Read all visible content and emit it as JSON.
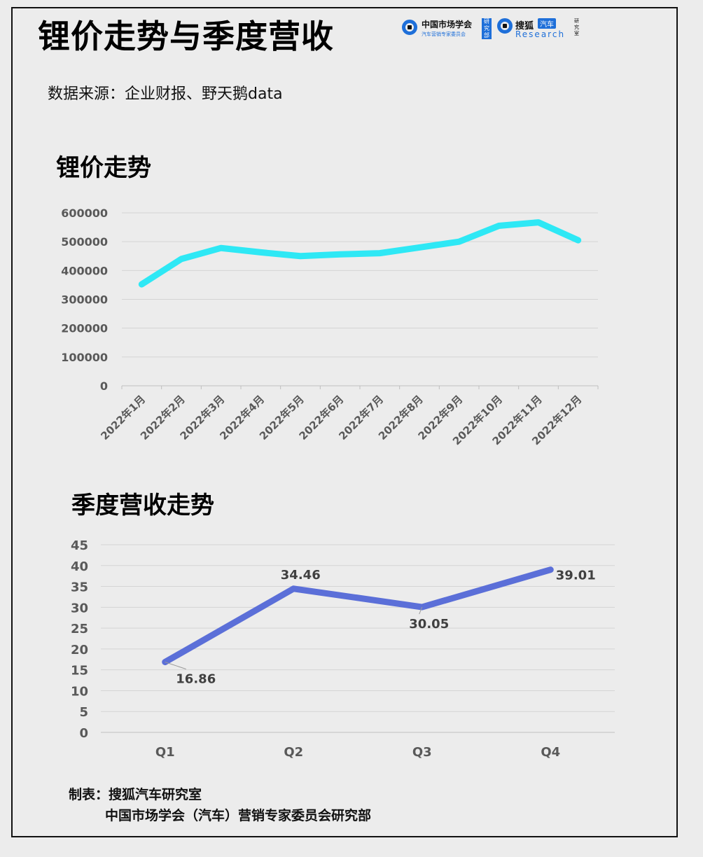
{
  "title": "锂价走势与季度营收",
  "source": "数据来源：企业财报、野天鹅data",
  "logos": {
    "logo1_line1": "中国市场学会",
    "logo1_line2": "汽车营销专家委员会",
    "logo1_box": "研究部",
    "logo2_name": "搜狐",
    "logo2_tag": "汽车",
    "logo2_research": "Research",
    "logo2_side": "研究室"
  },
  "section1_title": "锂价走势",
  "section2_title": "季度营收走势",
  "footer": {
    "line1": "制表：搜狐汽车研究室",
    "line2": "中国市场学会（汽车）营销专家委员会研究部"
  },
  "colors": {
    "lithium_line": "#2ee8f5",
    "revenue_line": "#5b6fd8",
    "grid": "#d4d4d4",
    "axis_text": "#595959"
  },
  "chart_data": [
    {
      "type": "line",
      "title": "锂价走势",
      "categories": [
        "2022年1月",
        "2022年2月",
        "2022年3月",
        "2022年4月",
        "2022年5月",
        "2022年6月",
        "2022年7月",
        "2022年8月",
        "2022年9月",
        "2022年10月",
        "2022年11月",
        "2022年12月"
      ],
      "series": [
        {
          "values": [
            352000,
            440000,
            478000,
            463000,
            450000,
            456000,
            460000,
            480000,
            500000,
            555000,
            567000,
            505000
          ]
        }
      ],
      "yticks": [
        "0",
        "100000",
        "200000",
        "300000",
        "400000",
        "500000",
        "600000"
      ],
      "ylim": [
        0,
        600000
      ],
      "grid": true
    },
    {
      "type": "line",
      "title": "季度营收走势",
      "categories": [
        "Q1",
        "Q2",
        "Q3",
        "Q4"
      ],
      "series": [
        {
          "values": [
            16.86,
            34.46,
            30.05,
            39.01
          ]
        }
      ],
      "data_labels": [
        "16.86",
        "34.46",
        "30.05",
        "39.01"
      ],
      "yticks": [
        "0",
        "5",
        "10",
        "15",
        "20",
        "25",
        "30",
        "35",
        "40",
        "45"
      ],
      "ylim": [
        0,
        45
      ],
      "grid": true
    }
  ]
}
